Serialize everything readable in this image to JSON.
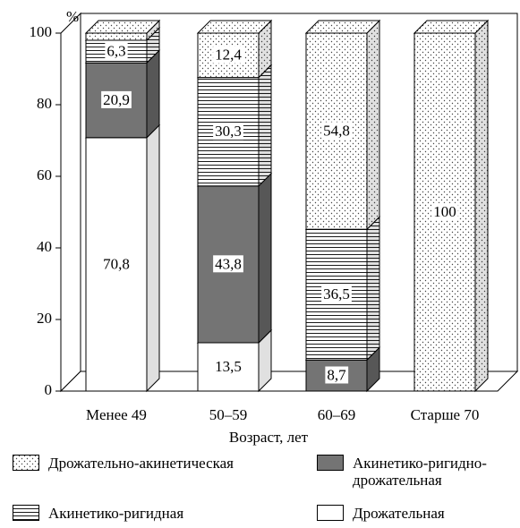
{
  "chart_data": {
    "type": "stacked-bar-3d",
    "ylabel": "%",
    "xlabel": "Возраст, лет",
    "categories": [
      "Менее 49",
      "50–59",
      "60–69",
      "Старше 70"
    ],
    "ylim": [
      0,
      100
    ],
    "yticks": [
      0,
      20,
      40,
      60,
      80,
      100
    ],
    "series": [
      {
        "name": "Дрожательная",
        "color": "#ffffff",
        "pattern": "solid",
        "values": [
          70.8,
          13.5,
          0,
          0
        ],
        "value_labels": [
          "70,8",
          "13,5",
          null,
          null
        ]
      },
      {
        "name": "Акинетико-ригидно-дрожательная",
        "color": "#747474",
        "pattern": "solid",
        "values": [
          20.9,
          43.8,
          8.7,
          0
        ],
        "value_labels": [
          "20,9",
          "43,8",
          "8,7",
          null
        ]
      },
      {
        "name": "Акинетико-ригидная",
        "color": "#ffffff",
        "pattern": "hlines",
        "values": [
          6.3,
          30.3,
          36.5,
          0
        ],
        "value_labels": [
          "6,3",
          "30,3",
          "36,5",
          null
        ]
      },
      {
        "name": "Дрожательно-акинетическая",
        "color": "#ffffff",
        "pattern": "dots",
        "values": [
          2,
          12.4,
          54.8,
          100
        ],
        "value_labels": [
          null,
          "12,4",
          "54,8",
          "100"
        ]
      }
    ]
  }
}
